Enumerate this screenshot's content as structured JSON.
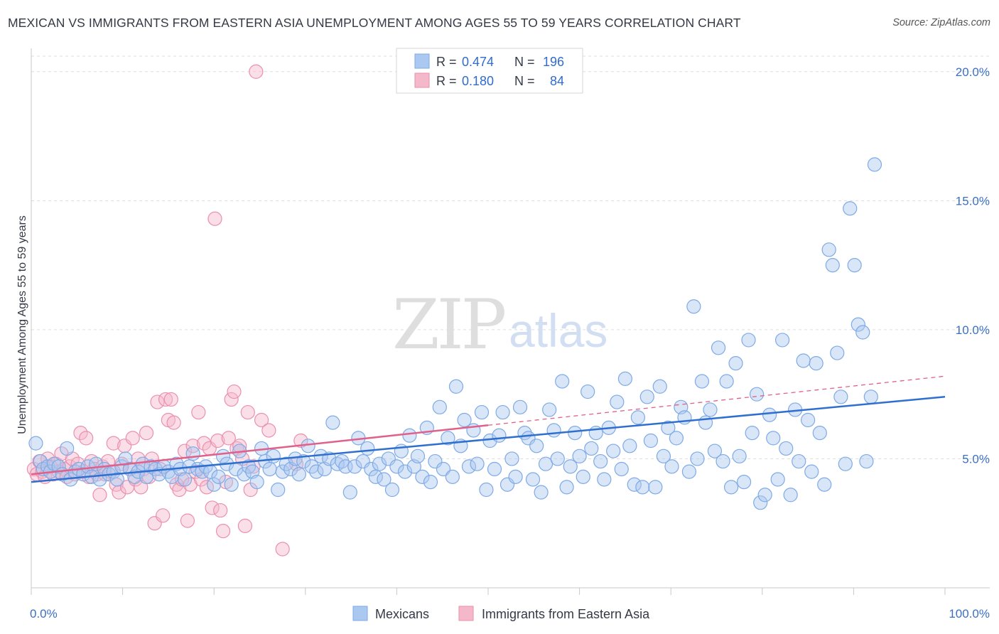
{
  "title": "MEXICAN VS IMMIGRANTS FROM EASTERN ASIA UNEMPLOYMENT AMONG AGES 55 TO 59 YEARS CORRELATION CHART",
  "source": "Source: ZipAtlas.com",
  "watermark": {
    "zip": "ZIP",
    "atlas": "atlas"
  },
  "legend": {
    "mexicans": {
      "r_label": "R =",
      "r_value": "0.474",
      "n_label": "N =",
      "n_value": "196"
    },
    "eastern_asia": {
      "r_label": "R =",
      "r_value": "0.180",
      "n_label": "N =",
      "n_value": "84"
    }
  },
  "bottom_legend": {
    "mexicans": "Mexicans",
    "eastern_asia": "Immigrants from Eastern Asia"
  },
  "colors": {
    "mexicans_fill": "#aac8f0",
    "mexicans_stroke": "#7eaae6",
    "mexicans_line": "#2f6fd0",
    "asia_fill": "#f5b8cb",
    "asia_stroke": "#eb8fae",
    "asia_line": "#e0608a",
    "tick_label": "#3a6fc6",
    "grid": "#dddddd"
  },
  "chart_data": {
    "type": "scatter",
    "title": "MEXICAN VS IMMIGRANTS FROM EASTERN ASIA UNEMPLOYMENT AMONG AGES 55 TO 59 YEARS CORRELATION CHART",
    "xlabel": "",
    "ylabel": "Unemployment Among Ages 55 to 59 years",
    "x_unit": "percent",
    "y_unit": "percent",
    "xlim": [
      0,
      100
    ],
    "ylim": [
      0,
      20.6
    ],
    "x_tick_labels": [
      "0.0%",
      "100.0%"
    ],
    "y_ticks": [
      5,
      10,
      15,
      20
    ],
    "y_tick_labels": [
      "5.0%",
      "10.0%",
      "15.0%",
      "20.0%"
    ],
    "grid": "horizontal dashed",
    "legend_position": "top-center",
    "series": [
      {
        "name": "Mexicans",
        "R": 0.474,
        "N": 196,
        "trend": {
          "x": [
            0,
            100
          ],
          "y": [
            4.1,
            7.4
          ],
          "style": "solid"
        },
        "points": [
          [
            0.5,
            5.6
          ],
          [
            1.0,
            4.9
          ],
          [
            1.3,
            4.6
          ],
          [
            1.8,
            4.7
          ],
          [
            2.1,
            4.5
          ],
          [
            2.5,
            4.8
          ],
          [
            3.0,
            4.7
          ],
          [
            3.4,
            4.4
          ],
          [
            3.9,
            5.4
          ],
          [
            4.3,
            4.2
          ],
          [
            4.8,
            4.5
          ],
          [
            5.2,
            4.6
          ],
          [
            5.7,
            4.4
          ],
          [
            6.2,
            4.7
          ],
          [
            6.6,
            4.3
          ],
          [
            7.1,
            4.8
          ],
          [
            7.5,
            4.2
          ],
          [
            8.0,
            4.6
          ],
          [
            8.5,
            4.4
          ],
          [
            9.0,
            4.5
          ],
          [
            9.4,
            4.2
          ],
          [
            9.9,
            4.7
          ],
          [
            10.3,
            5.0
          ],
          [
            10.8,
            4.6
          ],
          [
            11.3,
            4.3
          ],
          [
            11.7,
            4.5
          ],
          [
            12.2,
            4.8
          ],
          [
            12.6,
            4.3
          ],
          [
            13.1,
            4.7
          ],
          [
            13.6,
            4.6
          ],
          [
            14.0,
            4.4
          ],
          [
            14.5,
            4.7
          ],
          [
            15.0,
            4.5
          ],
          [
            15.4,
            4.3
          ],
          [
            15.9,
            4.8
          ],
          [
            16.3,
            4.6
          ],
          [
            16.8,
            4.2
          ],
          [
            17.3,
            4.7
          ],
          [
            17.7,
            5.2
          ],
          [
            18.2,
            4.6
          ],
          [
            18.7,
            4.5
          ],
          [
            19.1,
            4.7
          ],
          [
            19.6,
            4.5
          ],
          [
            20.0,
            4.0
          ],
          [
            20.5,
            4.3
          ],
          [
            21.0,
            5.1
          ],
          [
            21.4,
            4.8
          ],
          [
            21.9,
            4.0
          ],
          [
            22.4,
            4.6
          ],
          [
            22.8,
            5.3
          ],
          [
            23.3,
            4.4
          ],
          [
            23.8,
            4.7
          ],
          [
            24.2,
            4.5
          ],
          [
            24.7,
            4.1
          ],
          [
            25.2,
            5.4
          ],
          [
            25.6,
            4.9
          ],
          [
            26.1,
            4.6
          ],
          [
            26.5,
            5.1
          ],
          [
            27.0,
            3.8
          ],
          [
            27.5,
            4.5
          ],
          [
            27.9,
            4.8
          ],
          [
            28.4,
            4.6
          ],
          [
            28.9,
            5.0
          ],
          [
            29.3,
            4.4
          ],
          [
            29.8,
            4.9
          ],
          [
            30.3,
            5.5
          ],
          [
            30.7,
            4.7
          ],
          [
            31.2,
            4.5
          ],
          [
            31.7,
            5.1
          ],
          [
            32.1,
            4.6
          ],
          [
            32.6,
            5.0
          ],
          [
            33.0,
            6.4
          ],
          [
            33.5,
            4.8
          ],
          [
            34.0,
            4.9
          ],
          [
            34.4,
            4.7
          ],
          [
            34.9,
            3.7
          ],
          [
            35.4,
            4.7
          ],
          [
            35.8,
            5.8
          ],
          [
            36.3,
            4.9
          ],
          [
            36.8,
            5.4
          ],
          [
            37.2,
            4.6
          ],
          [
            37.7,
            4.3
          ],
          [
            38.1,
            4.8
          ],
          [
            38.6,
            4.2
          ],
          [
            39.1,
            5.0
          ],
          [
            39.5,
            3.8
          ],
          [
            40.0,
            4.7
          ],
          [
            40.5,
            5.3
          ],
          [
            40.9,
            4.5
          ],
          [
            41.4,
            5.9
          ],
          [
            41.9,
            4.7
          ],
          [
            42.3,
            5.1
          ],
          [
            42.8,
            4.3
          ],
          [
            43.3,
            6.2
          ],
          [
            43.7,
            4.1
          ],
          [
            44.2,
            4.9
          ],
          [
            44.7,
            7.0
          ],
          [
            45.1,
            4.6
          ],
          [
            45.6,
            5.8
          ],
          [
            46.1,
            4.3
          ],
          [
            46.5,
            7.8
          ],
          [
            47.0,
            5.5
          ],
          [
            47.4,
            6.5
          ],
          [
            47.9,
            4.7
          ],
          [
            48.4,
            6.1
          ],
          [
            48.8,
            4.8
          ],
          [
            49.3,
            6.8
          ],
          [
            49.8,
            3.8
          ],
          [
            50.2,
            5.7
          ],
          [
            50.7,
            4.6
          ],
          [
            51.2,
            5.9
          ],
          [
            51.6,
            6.8
          ],
          [
            52.1,
            4.0
          ],
          [
            52.6,
            5.0
          ],
          [
            53.0,
            4.3
          ],
          [
            53.5,
            7.0
          ],
          [
            54.0,
            6.0
          ],
          [
            54.4,
            5.8
          ],
          [
            54.9,
            4.2
          ],
          [
            55.3,
            5.5
          ],
          [
            55.8,
            3.7
          ],
          [
            56.3,
            4.8
          ],
          [
            56.7,
            6.9
          ],
          [
            57.2,
            6.1
          ],
          [
            57.6,
            5.0
          ],
          [
            58.1,
            8.0
          ],
          [
            58.6,
            3.9
          ],
          [
            59.0,
            4.7
          ],
          [
            59.5,
            6.0
          ],
          [
            60.0,
            5.1
          ],
          [
            60.4,
            4.3
          ],
          [
            60.9,
            7.6
          ],
          [
            61.3,
            5.4
          ],
          [
            61.8,
            6.0
          ],
          [
            62.3,
            4.9
          ],
          [
            62.7,
            4.2
          ],
          [
            63.2,
            6.2
          ],
          [
            63.7,
            5.3
          ],
          [
            64.1,
            7.2
          ],
          [
            64.6,
            4.6
          ],
          [
            65.0,
            8.1
          ],
          [
            65.5,
            5.5
          ],
          [
            66.0,
            4.0
          ],
          [
            66.4,
            6.6
          ],
          [
            66.9,
            3.9
          ],
          [
            67.4,
            7.4
          ],
          [
            67.8,
            5.7
          ],
          [
            68.3,
            3.9
          ],
          [
            68.8,
            7.8
          ],
          [
            69.2,
            5.1
          ],
          [
            69.7,
            6.2
          ],
          [
            70.1,
            4.7
          ],
          [
            70.6,
            5.8
          ],
          [
            71.1,
            7.0
          ],
          [
            71.5,
            6.6
          ],
          [
            72.0,
            4.5
          ],
          [
            72.5,
            10.9
          ],
          [
            72.9,
            5.0
          ],
          [
            73.4,
            8.0
          ],
          [
            73.8,
            6.4
          ],
          [
            74.3,
            6.9
          ],
          [
            74.8,
            5.3
          ],
          [
            75.2,
            9.3
          ],
          [
            75.7,
            4.9
          ],
          [
            76.1,
            8.0
          ],
          [
            76.6,
            3.9
          ],
          [
            77.1,
            8.7
          ],
          [
            77.5,
            5.1
          ],
          [
            78.0,
            4.1
          ],
          [
            78.5,
            9.6
          ],
          [
            78.9,
            6.0
          ],
          [
            79.4,
            7.5
          ],
          [
            79.8,
            3.3
          ],
          [
            80.3,
            3.6
          ],
          [
            80.8,
            6.7
          ],
          [
            81.2,
            5.8
          ],
          [
            81.7,
            4.2
          ],
          [
            82.2,
            9.6
          ],
          [
            82.6,
            5.4
          ],
          [
            83.1,
            3.6
          ],
          [
            83.6,
            6.9
          ],
          [
            84.0,
            4.9
          ],
          [
            84.5,
            8.8
          ],
          [
            85.0,
            6.5
          ],
          [
            85.4,
            4.5
          ],
          [
            85.9,
            8.7
          ],
          [
            86.3,
            6.0
          ],
          [
            86.8,
            4.0
          ],
          [
            87.3,
            13.1
          ],
          [
            87.7,
            12.5
          ],
          [
            88.2,
            9.1
          ],
          [
            88.6,
            7.4
          ],
          [
            89.1,
            4.8
          ],
          [
            89.6,
            14.7
          ],
          [
            90.1,
            12.5
          ],
          [
            90.5,
            10.2
          ],
          [
            91.0,
            9.9
          ],
          [
            91.4,
            4.9
          ],
          [
            91.9,
            7.4
          ],
          [
            92.3,
            16.4
          ]
        ]
      },
      {
        "name": "Immigrants from Eastern Asia",
        "R": 0.18,
        "N": 84,
        "trend": {
          "x": [
            0,
            50
          ],
          "y": [
            4.4,
            6.3
          ],
          "style": "solid"
        },
        "trend_extension": {
          "x": [
            50,
            100
          ],
          "y": [
            6.3,
            8.2
          ],
          "style": "dashed"
        },
        "points": [
          [
            0.3,
            4.6
          ],
          [
            0.6,
            4.4
          ],
          [
            0.9,
            4.9
          ],
          [
            1.2,
            4.5
          ],
          [
            1.5,
            4.3
          ],
          [
            1.8,
            5.0
          ],
          [
            2.1,
            4.7
          ],
          [
            2.4,
            4.4
          ],
          [
            2.7,
            4.8
          ],
          [
            3.0,
            4.5
          ],
          [
            3.3,
            5.2
          ],
          [
            3.6,
            4.6
          ],
          [
            3.9,
            4.3
          ],
          [
            4.2,
            4.7
          ],
          [
            4.5,
            5.0
          ],
          [
            4.8,
            4.4
          ],
          [
            5.1,
            4.8
          ],
          [
            5.4,
            6.0
          ],
          [
            5.7,
            4.5
          ],
          [
            6.0,
            5.8
          ],
          [
            6.3,
            4.3
          ],
          [
            6.6,
            4.9
          ],
          [
            6.9,
            4.6
          ],
          [
            7.2,
            4.4
          ],
          [
            7.5,
            3.6
          ],
          [
            7.8,
            4.7
          ],
          [
            8.1,
            4.4
          ],
          [
            8.4,
            4.9
          ],
          [
            8.7,
            4.5
          ],
          [
            9.0,
            5.6
          ],
          [
            9.3,
            4.0
          ],
          [
            9.6,
            3.7
          ],
          [
            9.9,
            4.8
          ],
          [
            10.2,
            5.5
          ],
          [
            10.5,
            3.9
          ],
          [
            10.8,
            4.6
          ],
          [
            11.1,
            5.8
          ],
          [
            11.4,
            4.2
          ],
          [
            11.7,
            5.0
          ],
          [
            12.0,
            3.9
          ],
          [
            12.3,
            4.6
          ],
          [
            12.6,
            6.0
          ],
          [
            12.9,
            4.3
          ],
          [
            13.2,
            5.0
          ],
          [
            13.5,
            2.5
          ],
          [
            13.8,
            7.2
          ],
          [
            14.1,
            4.6
          ],
          [
            14.4,
            2.8
          ],
          [
            14.7,
            7.3
          ],
          [
            15.0,
            6.5
          ],
          [
            15.3,
            7.3
          ],
          [
            15.6,
            6.4
          ],
          [
            15.9,
            4.0
          ],
          [
            16.2,
            3.8
          ],
          [
            16.5,
            4.2
          ],
          [
            16.8,
            5.3
          ],
          [
            17.1,
            2.6
          ],
          [
            17.4,
            4.0
          ],
          [
            17.7,
            5.5
          ],
          [
            18.0,
            4.5
          ],
          [
            18.3,
            6.8
          ],
          [
            18.6,
            4.2
          ],
          [
            18.9,
            5.6
          ],
          [
            19.2,
            3.9
          ],
          [
            19.5,
            5.4
          ],
          [
            19.8,
            3.1
          ],
          [
            20.1,
            14.3
          ],
          [
            20.4,
            5.7
          ],
          [
            20.7,
            3.0
          ],
          [
            21.0,
            2.2
          ],
          [
            21.3,
            4.1
          ],
          [
            21.6,
            5.8
          ],
          [
            21.9,
            7.3
          ],
          [
            22.2,
            7.6
          ],
          [
            22.5,
            5.4
          ],
          [
            22.8,
            5.5
          ],
          [
            23.1,
            5.0
          ],
          [
            23.4,
            2.4
          ],
          [
            23.7,
            6.8
          ],
          [
            24.0,
            3.8
          ],
          [
            24.3,
            4.7
          ],
          [
            24.6,
            20.0
          ],
          [
            25.2,
            6.5
          ],
          [
            26.0,
            6.1
          ],
          [
            27.5,
            1.5
          ],
          [
            29.0,
            4.8
          ],
          [
            29.5,
            5.7
          ]
        ]
      }
    ]
  }
}
